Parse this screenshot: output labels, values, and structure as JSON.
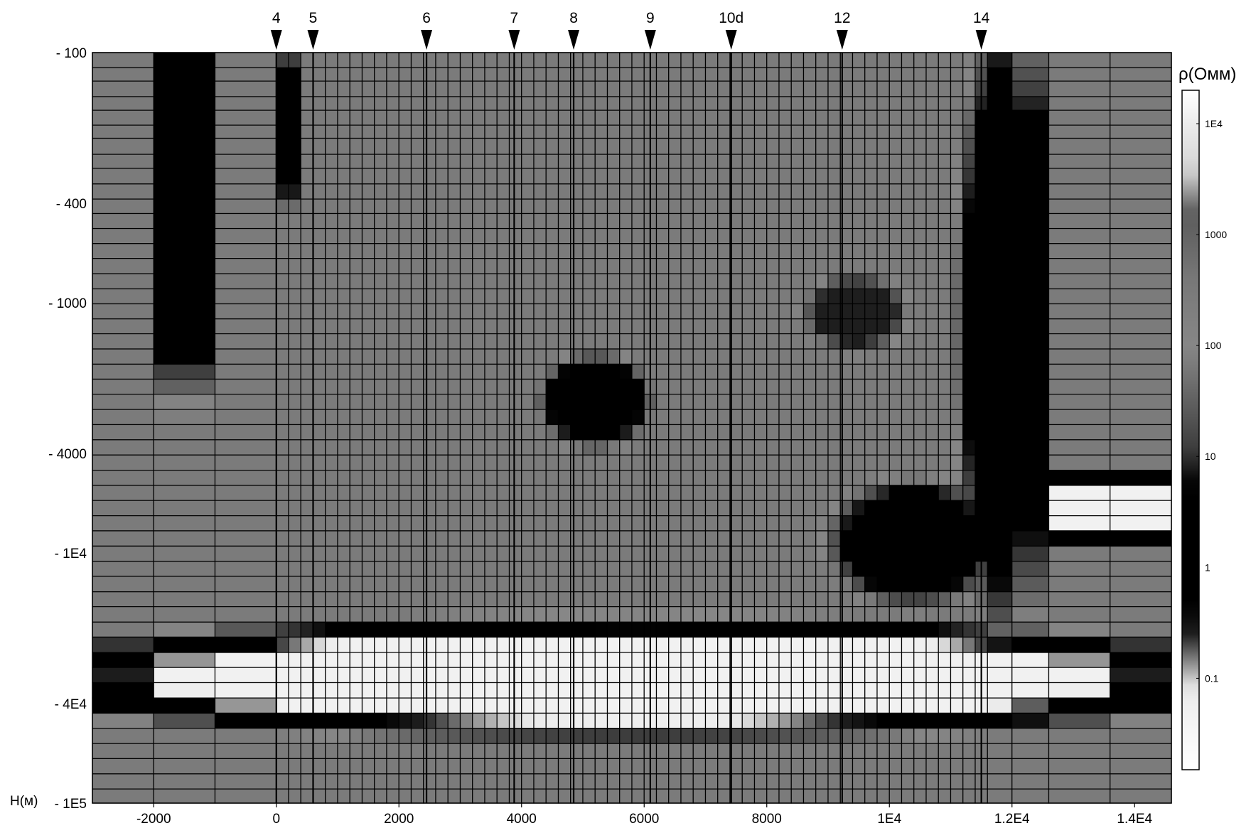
{
  "chart_data": {
    "type": "heatmap",
    "title": "",
    "xlabel": "",
    "ylabel": "H(м)",
    "x_axis": {
      "range": [
        -3000,
        14600
      ],
      "ticks": [
        -2000,
        0,
        2000,
        4000,
        6000,
        8000,
        10000,
        12000,
        14000
      ],
      "tick_labels": [
        "-2000",
        "0",
        "2000",
        "4000",
        "6000",
        "8000",
        "1E4",
        "1.2E4",
        "1.4E4"
      ]
    },
    "y_axis": {
      "scale": "log",
      "range": [
        100,
        100000
      ],
      "ticks": [
        100,
        400,
        1000,
        4000,
        10000,
        40000,
        100000
      ],
      "tick_labels": [
        "100",
        "400",
        "1000",
        "4000",
        "1E4",
        "4E4",
        "1E5"
      ]
    },
    "stations": [
      {
        "label": "4",
        "x": 0
      },
      {
        "label": "5",
        "x": 600
      },
      {
        "label": "6",
        "x": 2450
      },
      {
        "label": "7",
        "x": 3880
      },
      {
        "label": "8",
        "x": 4850
      },
      {
        "label": "9",
        "x": 6100
      },
      {
        "label": "10d",
        "x": 7420
      },
      {
        "label": "12",
        "x": 9230
      },
      {
        "label": "14",
        "x": 11500
      }
    ],
    "colorbar": {
      "label": "ρ(Омм)",
      "scale": "log",
      "range": [
        0.015,
        20000
      ],
      "ticks": [
        10000,
        1000,
        100,
        10,
        1,
        0.1
      ],
      "tick_labels": [
        "1E4",
        "1000",
        "100",
        "10",
        "1",
        "0.1"
      ]
    },
    "columns_x": [
      -3000,
      -2000,
      -1000,
      0,
      200,
      400,
      600,
      800,
      1000,
      1200,
      1400,
      1600,
      1800,
      2000,
      2200,
      2400,
      2600,
      2800,
      3000,
      3200,
      3400,
      3600,
      3800,
      4000,
      4200,
      4400,
      4600,
      4800,
      5000,
      5200,
      5400,
      5600,
      5800,
      6000,
      6200,
      6400,
      6600,
      6800,
      7000,
      7200,
      7400,
      7600,
      7800,
      8000,
      8200,
      8400,
      8600,
      8800,
      9000,
      9200,
      9400,
      9600,
      9800,
      10000,
      10200,
      10400,
      10600,
      10800,
      11000,
      11200,
      11400,
      11600,
      12000,
      12600,
      13600,
      14600
    ],
    "layer_depths_m": [
      100,
      115,
      130,
      150,
      170,
      195,
      220,
      255,
      290,
      335,
      385,
      440,
      505,
      580,
      665,
      765,
      880,
      1010,
      1160,
      1330,
      1530,
      1760,
      2020,
      2320,
      2670,
      3070,
      3530,
      4060,
      4670,
      5370,
      6170,
      7100,
      8160,
      9390,
      10800,
      12400,
      14300,
      16400,
      18900,
      21700,
      25000,
      28700,
      33000,
      38000,
      43700,
      50200,
      57800,
      66400,
      76400,
      87800,
      100000
    ],
    "resistivity_model": {
      "units": "Ом·м",
      "background": 300,
      "features": [
        {
          "description": "deep conductive layer",
          "x": [
            -3000,
            14600
          ],
          "depth_m": [
            20000,
            50000
          ],
          "rho": 0.05
        },
        {
          "description": "conductor under station 8",
          "x": [
            4400,
            6000
          ],
          "depth_m": [
            1700,
            3600
          ],
          "rho": 2
        },
        {
          "description": "conductor under station 12",
          "x": [
            8700,
            10200
          ],
          "depth_m": [
            800,
            1500
          ],
          "rho": 8
        },
        {
          "description": "conductive wedge",
          "x": [
            9200,
            11600
          ],
          "depth_m": [
            5500,
            15000
          ],
          "rho": 2
        },
        {
          "description": "conductive block at x=14",
          "x": [
            11200,
            12600
          ],
          "depth_m": [
            100,
            15000
          ],
          "rho": 2
        },
        {
          "description": "right-edge high-resistivity band",
          "x": [
            12600,
            14600
          ],
          "depth_m": [
            5000,
            9000
          ],
          "rho": 0.05
        },
        {
          "description": "conductor at station 4",
          "x": [
            0,
            400
          ],
          "depth_m": [
            100,
            400
          ],
          "rho": 2
        },
        {
          "description": "conductive block left",
          "x": [
            -2000,
            -1000
          ],
          "depth_m": [
            100,
            1800
          ],
          "rho": 2
        }
      ]
    }
  }
}
